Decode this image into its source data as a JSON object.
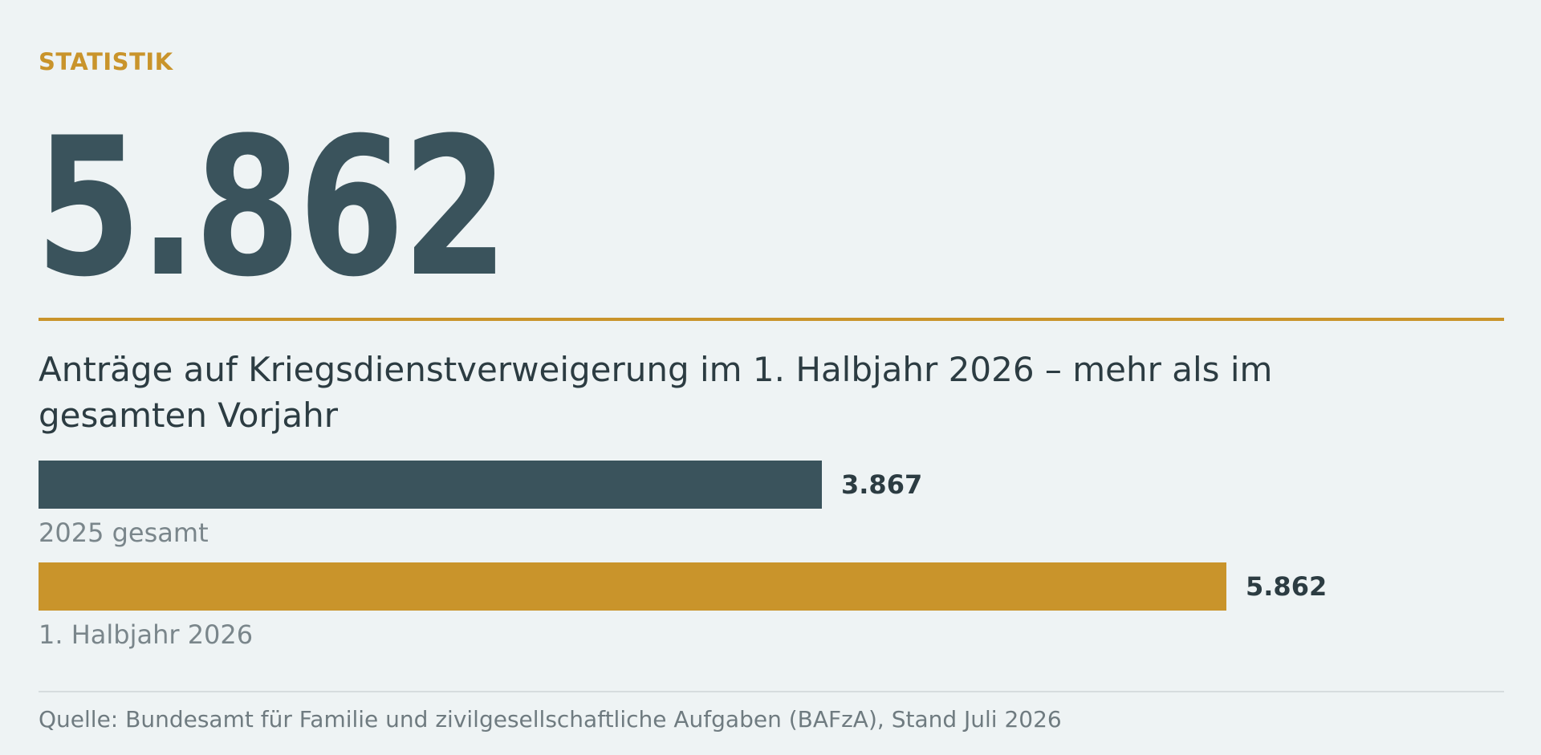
{
  "header": {
    "eyebrow": "STATISTIK",
    "big_number": "5.862",
    "headline": "Anträge auf Kriegsdienstverweigerung im 1. Halbjahr 2026 – mehr als im gesamten Vorjahr"
  },
  "colors": {
    "accent": "#c9942b",
    "primary": "#3a535c",
    "background": "#eef3f4"
  },
  "chart_data": {
    "type": "bar",
    "orientation": "horizontal",
    "categories": [
      "2025 gesamt",
      "1. Halbjahr 2026"
    ],
    "values": [
      3867,
      5862
    ],
    "value_labels": [
      "3.867",
      "5.862"
    ],
    "bar_colors": [
      "#3a535c",
      "#c9942b"
    ],
    "title": "Anträge auf Kriegsdienstverweigerung im 1. Halbjahr 2026 – mehr als im gesamten Vorjahr",
    "xlabel": "",
    "ylabel": "",
    "grid": false,
    "legend": "none"
  },
  "footer": {
    "source": "Quelle: Bundesamt für Familie und zivilgesellschaftliche Aufgaben (BAFzA), Stand Juli 2026"
  }
}
